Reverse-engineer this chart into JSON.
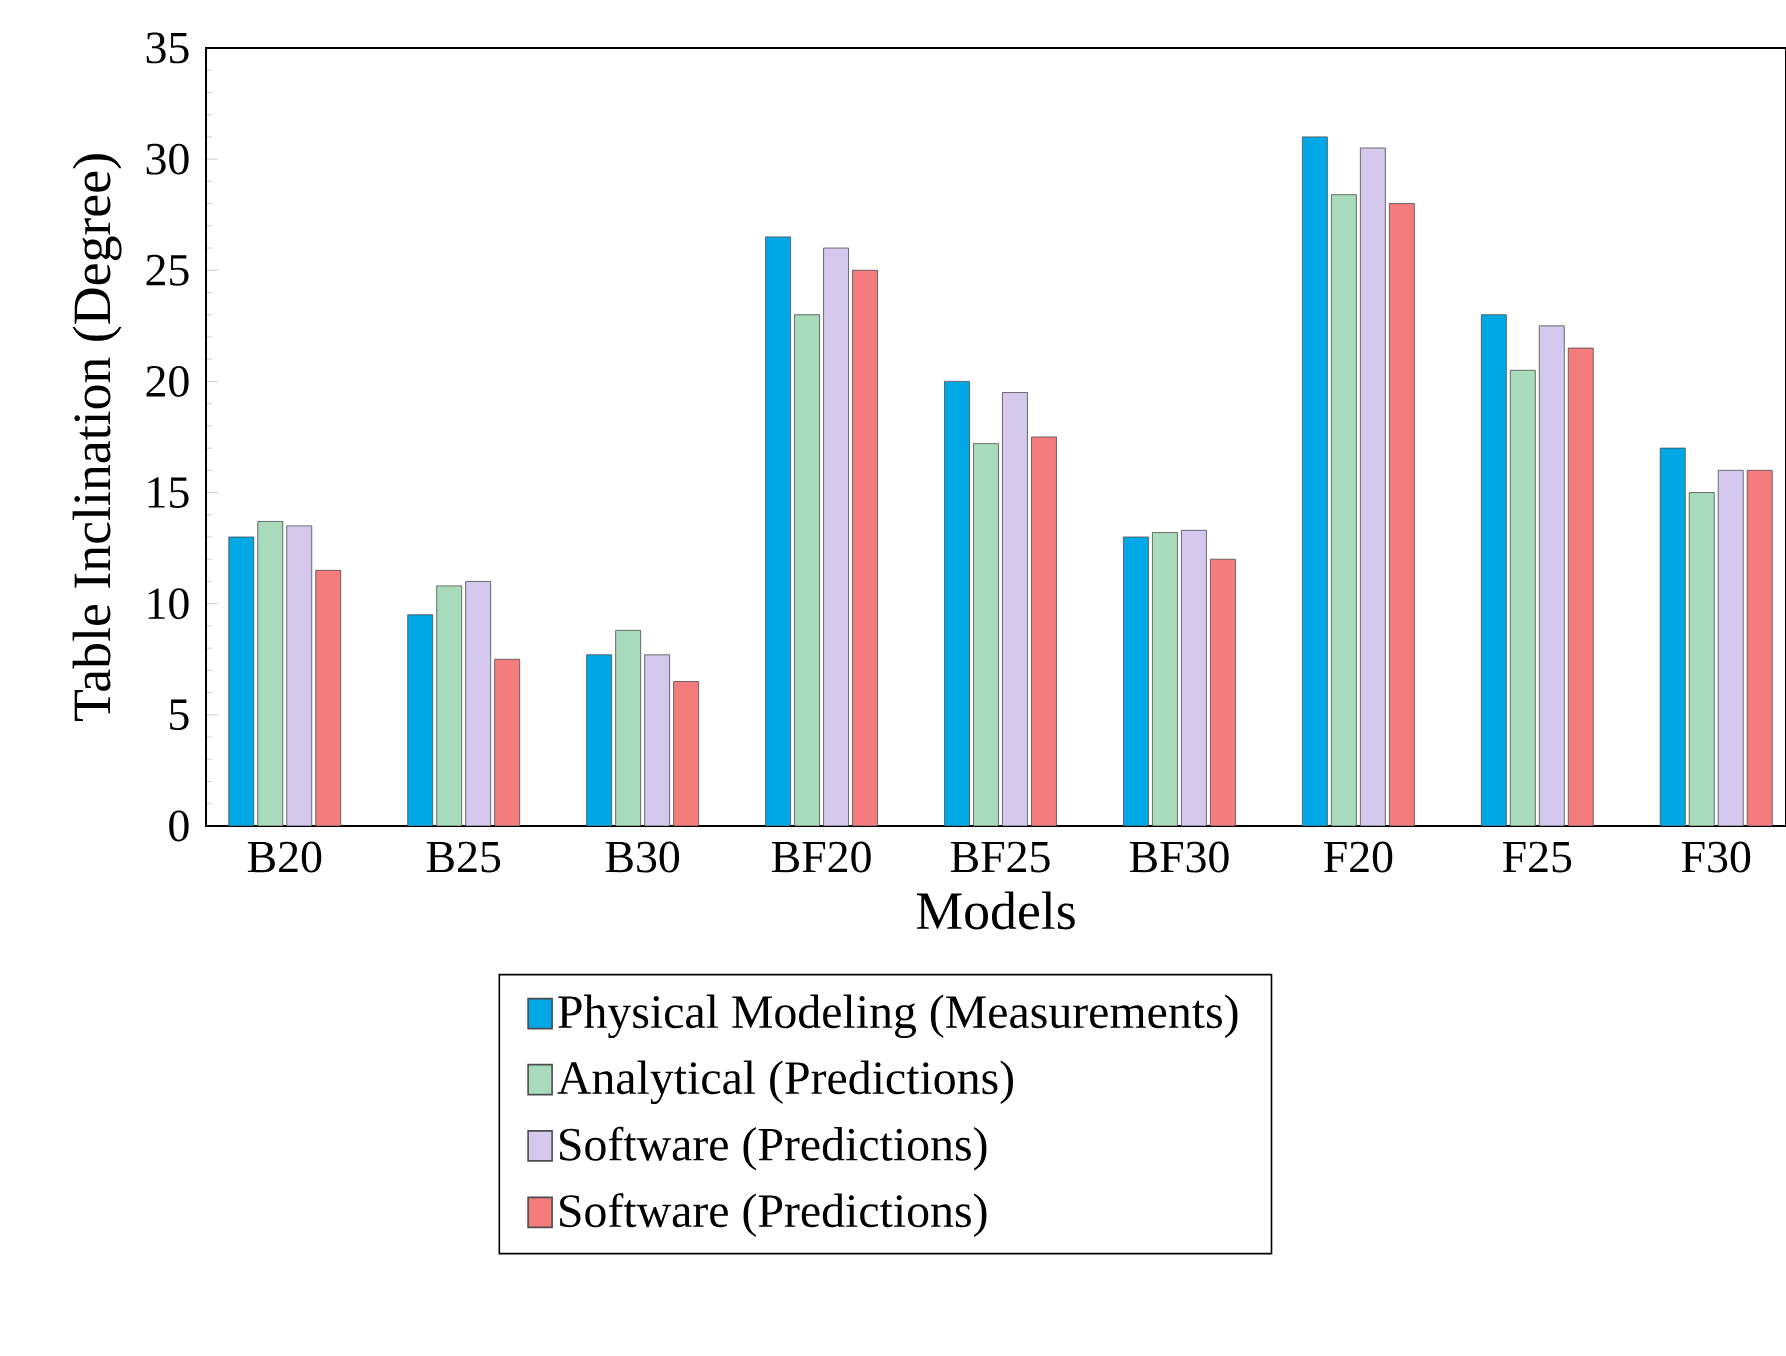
{
  "chart_data": {
    "type": "bar",
    "xlabel": "Models",
    "ylabel": "Table Inclination (Degree)",
    "categories": [
      "B20",
      "B25",
      "B30",
      "BF20",
      "BF25",
      "BF30",
      "F20",
      "F25",
      "F30"
    ],
    "series": [
      {
        "name": "Physical Modeling (Measurements)",
        "color": "#00a8e6",
        "values": [
          13,
          9.5,
          7.7,
          26.5,
          20,
          13,
          31,
          23,
          17
        ]
      },
      {
        "name": "Analytical (Predictions)",
        "color": "#a8dcbc",
        "values": [
          13.7,
          10.8,
          8.8,
          23,
          17.2,
          13.2,
          28.4,
          20.5,
          15
        ]
      },
      {
        "name": "Software (Predictions)",
        "color": "#d4c8ee",
        "values": [
          13.5,
          11,
          7.7,
          26,
          19.5,
          13.3,
          30.5,
          22.5,
          16
        ]
      },
      {
        "name": "Software (Predictions)",
        "color": "#f47c7c",
        "values": [
          11.5,
          7.5,
          6.5,
          25,
          17.5,
          12,
          28,
          21.5,
          16
        ]
      }
    ],
    "ylim": [
      0,
      35
    ],
    "yticks": [
      0,
      5,
      10,
      15,
      20,
      25,
      30,
      35
    ],
    "grid": false,
    "legend": "bottom"
  }
}
